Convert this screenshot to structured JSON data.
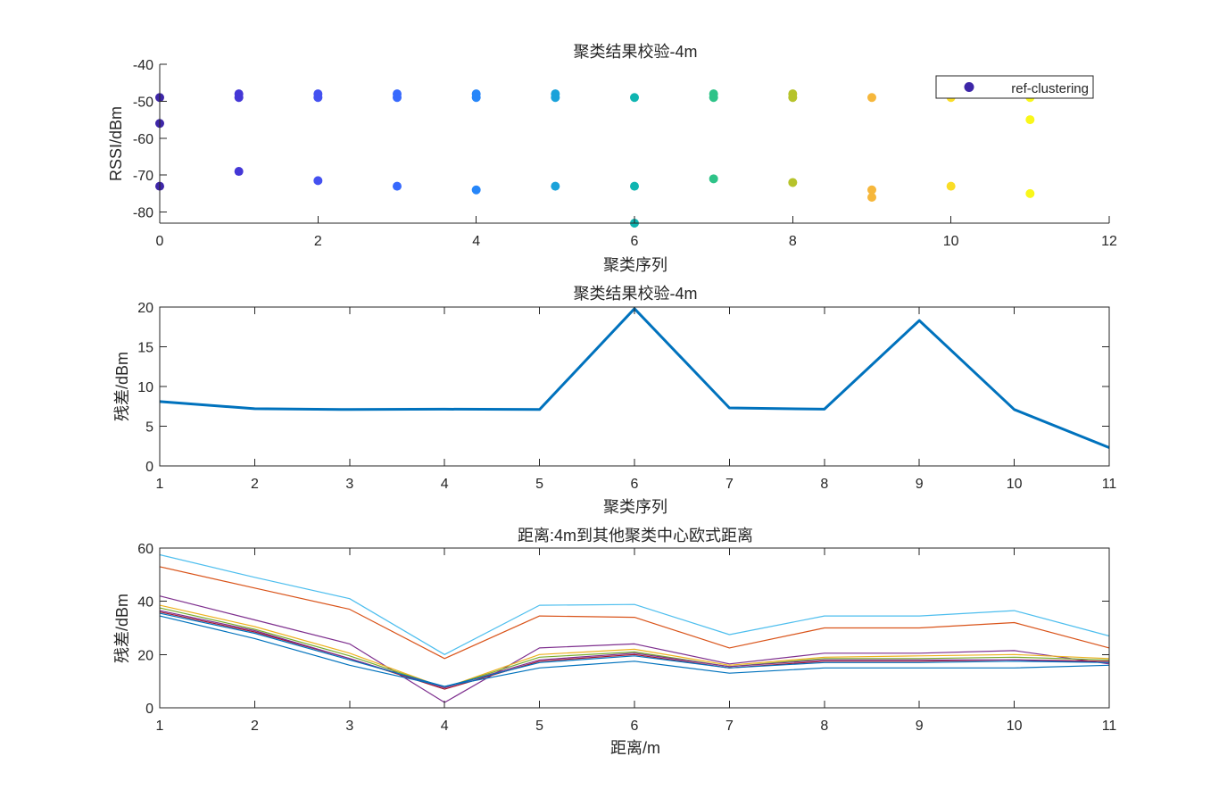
{
  "chart_data": [
    {
      "type": "scatter",
      "title": "聚类结果校验-4m",
      "xlabel": "聚类序列",
      "ylabel": "RSSI/dBm",
      "xlim": [
        0,
        12
      ],
      "ylim": [
        -83,
        -40
      ],
      "xticks": [
        0,
        2,
        4,
        6,
        8,
        10,
        12
      ],
      "yticks": [
        -80,
        -70,
        -60,
        -50,
        -40
      ],
      "legend": {
        "label": "ref-clustering",
        "position": "top-right",
        "marker_color": "#3d26a8"
      },
      "colors": [
        "#3e26a8",
        "#4437d6",
        "#4451f0",
        "#3769fd",
        "#2686f9",
        "#1aa2da",
        "#0fb5b1",
        "#2ec388",
        "#70c858",
        "#b6c32b",
        "#f6b73b",
        "#fadd26",
        "#f9f71a"
      ],
      "points": [
        {
          "x": 0,
          "y": -49,
          "c": 0
        },
        {
          "x": 0,
          "y": -56,
          "c": 0
        },
        {
          "x": 0,
          "y": -73,
          "c": 0
        },
        {
          "x": 1,
          "y": -48,
          "c": 1
        },
        {
          "x": 1,
          "y": -49,
          "c": 1
        },
        {
          "x": 1,
          "y": -69,
          "c": 1
        },
        {
          "x": 2,
          "y": -48,
          "c": 2
        },
        {
          "x": 2,
          "y": -49,
          "c": 2
        },
        {
          "x": 2,
          "y": -71.5,
          "c": 2
        },
        {
          "x": 3,
          "y": -48,
          "c": 3
        },
        {
          "x": 3,
          "y": -49,
          "c": 3
        },
        {
          "x": 3,
          "y": -73,
          "c": 3
        },
        {
          "x": 4,
          "y": -48,
          "c": 4
        },
        {
          "x": 4,
          "y": -49,
          "c": 4
        },
        {
          "x": 4,
          "y": -74,
          "c": 4
        },
        {
          "x": 5,
          "y": -48,
          "c": 5
        },
        {
          "x": 5,
          "y": -49,
          "c": 5
        },
        {
          "x": 5,
          "y": -73,
          "c": 5
        },
        {
          "x": 6,
          "y": -49,
          "c": 6
        },
        {
          "x": 6,
          "y": -73,
          "c": 6
        },
        {
          "x": 6,
          "y": -83,
          "c": 6
        },
        {
          "x": 7,
          "y": -48,
          "c": 7
        },
        {
          "x": 7,
          "y": -49,
          "c": 7
        },
        {
          "x": 7,
          "y": -71,
          "c": 7
        },
        {
          "x": 8,
          "y": -48,
          "c": 9
        },
        {
          "x": 8,
          "y": -49,
          "c": 9
        },
        {
          "x": 8,
          "y": -72,
          "c": 9
        },
        {
          "x": 9,
          "y": -49,
          "c": 10
        },
        {
          "x": 9,
          "y": -74,
          "c": 10
        },
        {
          "x": 9,
          "y": -76,
          "c": 10
        },
        {
          "x": 10,
          "y": -49,
          "c": 11
        },
        {
          "x": 10,
          "y": -73,
          "c": 11
        },
        {
          "x": 11,
          "y": -49,
          "c": 12
        },
        {
          "x": 11,
          "y": -55,
          "c": 12
        },
        {
          "x": 11,
          "y": -75,
          "c": 12
        }
      ]
    },
    {
      "type": "line",
      "title": "聚类结果校验-4m",
      "xlabel": "聚类序列",
      "ylabel": "残差/dBm",
      "xlim": [
        1,
        11
      ],
      "ylim": [
        0,
        20
      ],
      "xticks": [
        1,
        2,
        3,
        4,
        5,
        6,
        7,
        8,
        9,
        10,
        11
      ],
      "yticks": [
        0,
        5,
        10,
        15,
        20
      ],
      "x": [
        1,
        2,
        3,
        4,
        5,
        6,
        7,
        8,
        9,
        10,
        11
      ],
      "series": [
        {
          "color": "#0072bd",
          "values": [
            8.1,
            7.2,
            7.1,
            7.15,
            7.1,
            19.8,
            7.3,
            7.15,
            18.3,
            7.1,
            2.3
          ]
        }
      ]
    },
    {
      "type": "line",
      "title": "距离:4m到其他聚类中心欧式距离",
      "xlabel": "距离/m",
      "ylabel": "残差/dBm",
      "xlim": [
        1,
        11
      ],
      "ylim": [
        0,
        60
      ],
      "xticks": [
        1,
        2,
        3,
        4,
        5,
        6,
        7,
        8,
        9,
        10,
        11
      ],
      "yticks": [
        0,
        20,
        40,
        60
      ],
      "x": [
        1,
        2,
        3,
        4,
        5,
        6,
        7,
        8,
        9,
        10,
        11
      ],
      "series": [
        {
          "color": "#4dbeee",
          "values": [
            57.5,
            49,
            41,
            20,
            38.5,
            38.8,
            27.5,
            34.5,
            34.5,
            36.5,
            27
          ]
        },
        {
          "color": "#d95319",
          "values": [
            53,
            45,
            37,
            18.5,
            34.5,
            34,
            22.5,
            30,
            30,
            32,
            22.5
          ]
        },
        {
          "color": "#7e2f8e",
          "values": [
            42,
            33,
            24,
            2,
            22.5,
            24,
            16.5,
            20.5,
            20.5,
            21.5,
            16.5
          ]
        },
        {
          "color": "#edb120",
          "values": [
            38.5,
            30.5,
            20.5,
            7.5,
            20,
            22,
            16,
            19,
            19.5,
            20,
            18.5
          ]
        },
        {
          "color": "#77ac30",
          "values": [
            37.5,
            29.5,
            19.5,
            7.5,
            19,
            21,
            15.5,
            18.5,
            18.5,
            19,
            18
          ]
        },
        {
          "color": "#a2142f",
          "values": [
            36,
            28.5,
            18.5,
            7,
            17.5,
            20,
            15,
            17.5,
            17.5,
            18,
            17.5
          ]
        },
        {
          "color": "#7e2f8e",
          "values": [
            36.5,
            29,
            18.5,
            7.5,
            18,
            20.5,
            15.5,
            18,
            18,
            18,
            17
          ]
        },
        {
          "color": "#0072bd",
          "values": [
            35.5,
            28,
            18,
            8,
            17,
            19.5,
            15,
            17,
            17,
            17.5,
            17
          ]
        },
        {
          "color": "#0072bd",
          "values": [
            34.5,
            26,
            16,
            8,
            15,
            17.5,
            13,
            15,
            15,
            15,
            16
          ]
        }
      ]
    }
  ]
}
